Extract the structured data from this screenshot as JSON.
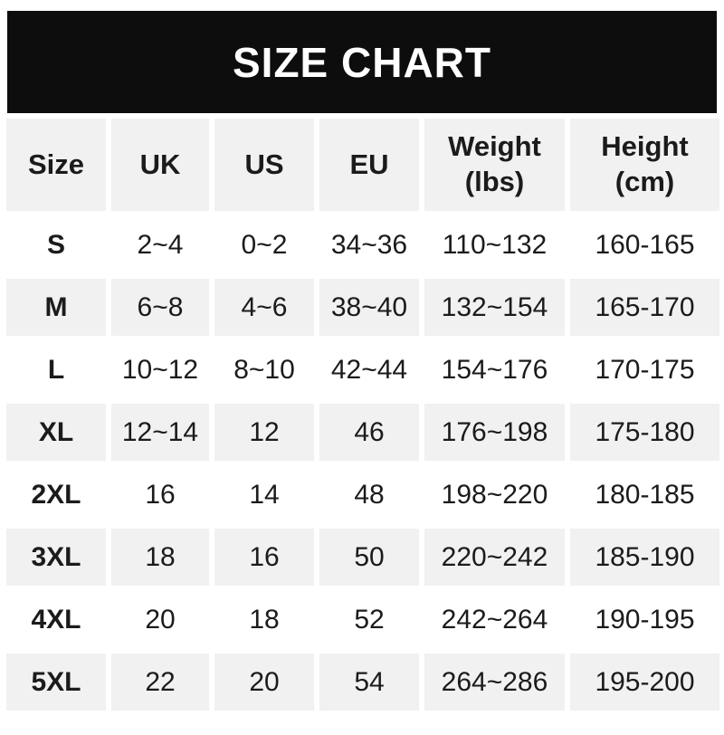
{
  "banner": {
    "title": "SIZE CHART",
    "bg_color": "#0d0d0d",
    "text_color": "#ffffff"
  },
  "chart_data": {
    "type": "table",
    "title": "SIZE CHART",
    "columns": [
      {
        "label": "Size"
      },
      {
        "label": "UK"
      },
      {
        "label": "US"
      },
      {
        "label": "EU"
      },
      {
        "label": "Weight",
        "sub": "(lbs)"
      },
      {
        "label": "Height",
        "sub": "(cm)"
      }
    ],
    "rows": [
      {
        "size": "S",
        "uk": "2~4",
        "us": "0~2",
        "eu": "34~36",
        "weight": "110~132",
        "height": "160-165"
      },
      {
        "size": "M",
        "uk": "6~8",
        "us": "4~6",
        "eu": "38~40",
        "weight": "132~154",
        "height": "165-170"
      },
      {
        "size": "L",
        "uk": "10~12",
        "us": "8~10",
        "eu": "42~44",
        "weight": "154~176",
        "height": "170-175"
      },
      {
        "size": "XL",
        "uk": "12~14",
        "us": "12",
        "eu": "46",
        "weight": "176~198",
        "height": "175-180"
      },
      {
        "size": "2XL",
        "uk": "16",
        "us": "14",
        "eu": "48",
        "weight": "198~220",
        "height": "180-185"
      },
      {
        "size": "3XL",
        "uk": "18",
        "us": "16",
        "eu": "50",
        "weight": "220~242",
        "height": "185-190"
      },
      {
        "size": "4XL",
        "uk": "20",
        "us": "18",
        "eu": "52",
        "weight": "242~264",
        "height": "190-195"
      },
      {
        "size": "5XL",
        "uk": "22",
        "us": "20",
        "eu": "54",
        "weight": "264~286",
        "height": "195-200"
      }
    ],
    "layout": {
      "striped": true,
      "stripe_color": "#f1f1f1",
      "row_color": "#ffffff",
      "header_bold": true
    }
  }
}
